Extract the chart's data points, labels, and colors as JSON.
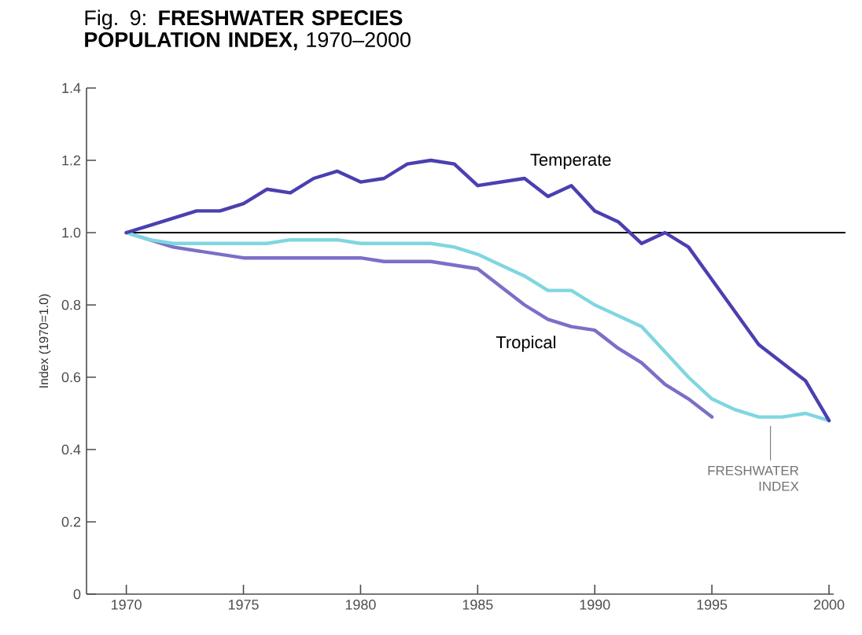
{
  "chart_data": {
    "type": "line",
    "title": "Fig. 9: **FRESHWATER SPECIES POPULATION INDEX,** 1970–2000",
    "ylabel": "Index (1970=1.0)",
    "x": [
      1970,
      1971,
      1972,
      1973,
      1974,
      1975,
      1976,
      1977,
      1978,
      1979,
      1980,
      1981,
      1982,
      1983,
      1984,
      1985,
      1986,
      1987,
      1988,
      1989,
      1990,
      1991,
      1992,
      1993,
      1994,
      1995,
      1996,
      1997,
      1998,
      1999,
      2000
    ],
    "series": [
      {
        "name": "Temperate",
        "color": "#4b3fb0",
        "values": [
          1.0,
          1.02,
          1.04,
          1.06,
          1.06,
          1.08,
          1.12,
          1.11,
          1.15,
          1.17,
          1.14,
          1.15,
          1.19,
          1.2,
          1.19,
          1.13,
          1.14,
          1.15,
          1.1,
          1.13,
          1.06,
          1.03,
          0.97,
          1.0,
          0.96,
          0.87,
          0.78,
          0.69,
          0.64,
          0.59,
          0.48
        ]
      },
      {
        "name": "FRESHWATER INDEX",
        "color": "#7fd6e0",
        "values": [
          1.0,
          0.98,
          0.97,
          0.97,
          0.97,
          0.97,
          0.97,
          0.98,
          0.98,
          0.98,
          0.97,
          0.97,
          0.97,
          0.97,
          0.96,
          0.94,
          0.91,
          0.88,
          0.84,
          0.84,
          0.8,
          0.77,
          0.74,
          0.67,
          0.6,
          0.54,
          0.51,
          0.49,
          0.49,
          0.5,
          0.48
        ]
      },
      {
        "name": "Tropical",
        "color": "#7a6fc8",
        "values": [
          1.0,
          0.98,
          0.96,
          0.95,
          0.94,
          0.93,
          0.93,
          0.93,
          0.93,
          0.93,
          0.93,
          0.92,
          0.92,
          0.92,
          0.91,
          0.9,
          0.85,
          0.8,
          0.76,
          0.74,
          0.73,
          0.68,
          0.64,
          0.58,
          0.54,
          0.49,
          null,
          null,
          null,
          null,
          null
        ]
      }
    ],
    "xlim": [
      1968.3,
      2000.2
    ],
    "ylim": [
      0,
      1.4
    ],
    "xticks": [
      1970,
      1975,
      1980,
      1985,
      1990,
      1995,
      2000
    ],
    "yticks": [
      0,
      0.2,
      0.4,
      0.6,
      0.8,
      {
        "value": 1.0,
        "label": "1.0"
      },
      1.2,
      1.4
    ],
    "ref_lines": [
      {
        "axis": "y",
        "value": 1.0,
        "color": "#000000"
      }
    ],
    "grid": false,
    "marker": "none",
    "line_style": "solid"
  }
}
